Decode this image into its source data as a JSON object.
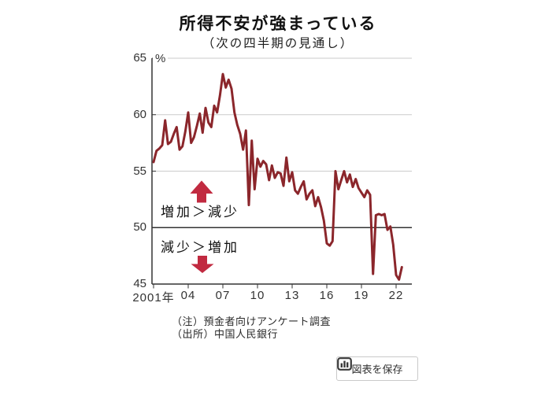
{
  "title": "所得不安が強まっている",
  "subtitle": "（次の四半期の見通し）",
  "unit_label": "%",
  "annotations": {
    "above_boundary": "増加＞減少",
    "below_boundary": "減少＞増加"
  },
  "notes": {
    "note": "（注）預金者向けアンケート調査",
    "source": "（出所）中国人民銀行"
  },
  "save_button": {
    "label": "図表を保存",
    "icon": "bar-chart-icon"
  },
  "colors": {
    "line": "#8b262b",
    "arrow": "#c12a40",
    "grid": "#cbcbcb",
    "axis": "#333333"
  },
  "chart_data": {
    "type": "line",
    "title": "所得不安が強まっている",
    "subtitle": "（次の四半期の見通し）",
    "ylabel": "%",
    "ylim": [
      45,
      65
    ],
    "y_ticks": [
      65,
      60,
      55,
      50,
      45
    ],
    "boundary_value": 50,
    "grid": "horizontal",
    "legend": "none",
    "x_ticks": [
      {
        "year": 2001,
        "label": "2001年"
      },
      {
        "year": 2004,
        "label": "04"
      },
      {
        "year": 2007,
        "label": "07"
      },
      {
        "year": 2010,
        "label": "10"
      },
      {
        "year": 2013,
        "label": "13"
      },
      {
        "year": 2016,
        "label": "16"
      },
      {
        "year": 2019,
        "label": "19"
      },
      {
        "year": 2022,
        "label": "22"
      }
    ],
    "frequency": "quarterly",
    "x_start": 2001.0,
    "x_step_years": 0.25,
    "values": [
      55.8,
      56.8,
      57.0,
      57.3,
      59.5,
      57.4,
      57.6,
      58.3,
      58.9,
      56.9,
      57.2,
      58.5,
      60.2,
      57.5,
      58.0,
      59.0,
      60.1,
      58.4,
      60.6,
      59.3,
      58.9,
      60.8,
      60.2,
      61.7,
      63.6,
      62.4,
      63.1,
      62.3,
      60.2,
      59.1,
      58.3,
      56.9,
      58.6,
      52.0,
      57.7,
      53.4,
      56.1,
      55.4,
      55.9,
      55.6,
      54.2,
      55.5,
      54.4,
      54.9,
      54.8,
      53.7,
      56.2,
      54.1,
      54.9,
      53.3,
      53.0,
      53.6,
      54.1,
      52.5,
      53.0,
      53.3,
      51.9,
      52.7,
      51.8,
      50.6,
      48.6,
      48.4,
      48.8,
      55.0,
      53.4,
      54.2,
      55.0,
      54.0,
      54.7,
      53.6,
      54.3,
      53.5,
      53.1,
      52.7,
      53.3,
      52.9,
      45.9,
      51.1,
      51.2,
      51.1,
      51.2,
      49.8,
      50.1,
      48.5,
      45.8,
      45.4,
      46.5
    ]
  }
}
